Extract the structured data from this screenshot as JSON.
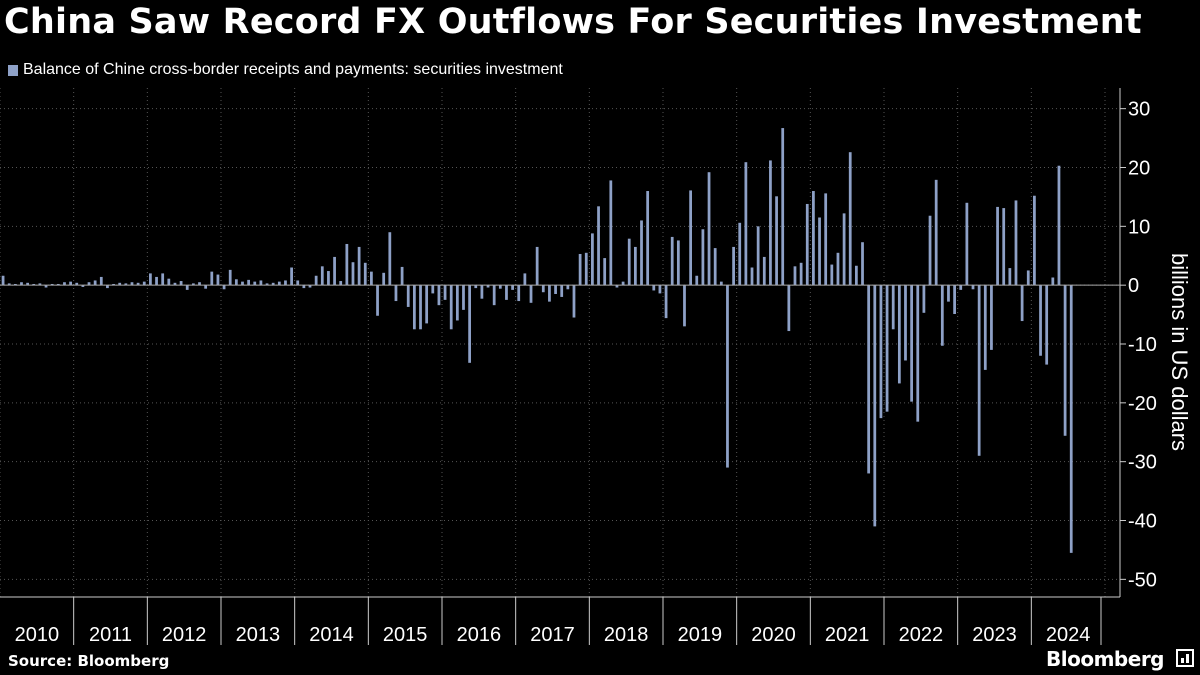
{
  "title": "China Saw Record FX Outflows For Securities Investment",
  "legend_label": "Balance of Chine cross-border receipts and payments: securities investment",
  "y_axis_label": "billions in US dollars",
  "source": "Source: Bloomberg",
  "brand": "Bloomberg",
  "colors": {
    "background": "#000000",
    "bar": "#8ea1c7",
    "grid": "#555555",
    "text": "#ffffff"
  },
  "chart_data": {
    "type": "bar",
    "frequency": "monthly",
    "start": "2010-01",
    "end": "2024-12",
    "ylim": [
      -53,
      33
    ],
    "yticks": [
      30,
      20,
      10,
      0,
      -10,
      -20,
      -30,
      -40,
      -50
    ],
    "x_labels": [
      "2010",
      "2011",
      "2012",
      "2013",
      "2014",
      "2015",
      "2016",
      "2017",
      "2018",
      "2019",
      "2020",
      "2021",
      "2022",
      "2023",
      "2024"
    ],
    "ylabel": "billions in US dollars",
    "grid": true,
    "series": [
      {
        "name": "Balance of Chine cross-border receipts and payments: securities investment",
        "values": [
          1.6,
          0.3,
          0.2,
          0.5,
          0.4,
          0.2,
          0.3,
          -0.4,
          0.2,
          0.2,
          0.5,
          0.6,
          0.4,
          -0.3,
          0.5,
          0.8,
          1.4,
          -0.5,
          0.2,
          0.4,
          0.3,
          0.5,
          0.4,
          0.6,
          2.0,
          1.4,
          2.0,
          1.1,
          0.4,
          0.7,
          -0.8,
          0.3,
          0.5,
          -0.6,
          2.3,
          1.8,
          -0.7,
          2.6,
          1.0,
          0.6,
          0.9,
          0.6,
          0.8,
          0.3,
          0.4,
          0.6,
          0.8,
          3.0,
          0.8,
          -0.5,
          -0.4,
          1.6,
          3.2,
          2.4,
          4.8,
          0.7,
          7.0,
          3.9,
          6.5,
          3.8,
          2.3,
          -5.2,
          2.1,
          9.0,
          -2.7,
          3.1,
          -3.7,
          -7.5,
          -7.5,
          -6.5,
          -1.4,
          -3.4,
          -2.5,
          -7.5,
          -6.0,
          -4.2,
          -13.2,
          -0.5,
          -2.3,
          -0.4,
          -3.4,
          -0.6,
          -2.5,
          -0.8,
          -2.7,
          2.0,
          -3.0,
          6.5,
          -1.2,
          -2.8,
          -1.5,
          -2.0,
          -0.7,
          -5.5,
          5.3,
          5.5,
          8.8,
          13.4,
          4.6,
          17.8,
          -0.4,
          0.6,
          7.9,
          6.5,
          11.0,
          16.0,
          -0.9,
          -1.4,
          -5.6,
          8.2,
          7.6,
          -7.0,
          16.1,
          1.6,
          9.5,
          19.2,
          6.3,
          0.6,
          -31.0,
          6.5,
          10.6,
          20.9,
          3.0,
          10.0,
          4.8,
          21.2,
          15.1,
          26.7,
          -7.8,
          3.2,
          3.8,
          13.8,
          16.0,
          11.5,
          15.6,
          3.5,
          5.5,
          12.2,
          22.6,
          3.3,
          7.3,
          -32.0,
          -41.0,
          -22.6,
          -21.5,
          -7.5,
          -16.7,
          -12.8,
          -19.8,
          -23.2,
          -4.7,
          11.8,
          17.9,
          -10.3,
          -2.8,
          -4.9,
          -0.8,
          14.0,
          -0.7,
          -29.0,
          -14.4,
          -11.0,
          13.3,
          13.1,
          2.9,
          14.4,
          -6.1,
          2.5,
          15.2,
          -12.0,
          -13.5,
          1.3,
          20.3,
          -25.6,
          -45.5
        ]
      }
    ]
  }
}
